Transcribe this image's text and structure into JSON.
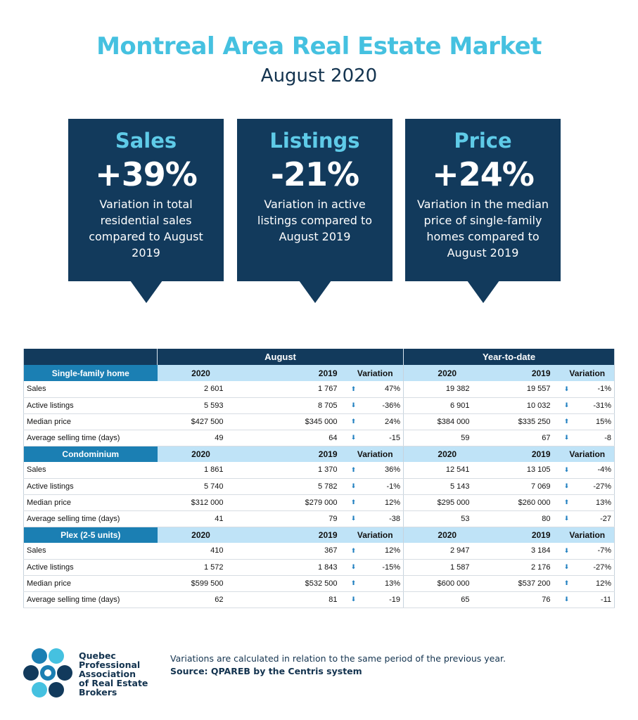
{
  "header": {
    "title": "Montreal Area Real Estate Market",
    "subtitle": "August 2020"
  },
  "cards": [
    {
      "label": "Sales",
      "value": "+39%",
      "desc": "Variation in total residential sales compared to August 2019"
    },
    {
      "label": "Listings",
      "value": "-21%",
      "desc": "Variation in active listings compared to August 2019"
    },
    {
      "label": "Price",
      "value": "+24%",
      "desc": "Variation in the median price of single-family homes compared to August 2019"
    }
  ],
  "table": {
    "group_august": "August",
    "group_ytd": "Year-to-date",
    "col_2020": "2020",
    "col_2019": "2019",
    "col_variation": "Variation",
    "colors": {
      "up_arrow": "#1f7fc0",
      "down_arrow": "#1f7fc0",
      "header": "#123a5c",
      "section": "#1b7fb3"
    },
    "sections": [
      {
        "category": "Single-family home",
        "rows": [
          {
            "label": "Sales",
            "a2020": "2 601",
            "a2019": "1 767",
            "adir": "up",
            "avar": "47%",
            "y2020": "19 382",
            "y2019": "19 557",
            "ydir": "down",
            "yvar": "-1%"
          },
          {
            "label": "Active listings",
            "a2020": "5 593",
            "a2019": "8 705",
            "adir": "down",
            "avar": "-36%",
            "y2020": "6 901",
            "y2019": "10 032",
            "ydir": "down",
            "yvar": "-31%"
          },
          {
            "label": "Median price",
            "a2020": "$427 500",
            "a2019": "$345 000",
            "adir": "up",
            "avar": "24%",
            "y2020": "$384 000",
            "y2019": "$335 250",
            "ydir": "up",
            "yvar": "15%"
          },
          {
            "label": "Average selling time (days)",
            "a2020": "49",
            "a2019": "64",
            "adir": "down",
            "avar": "-15",
            "y2020": "59",
            "y2019": "67",
            "ydir": "down",
            "yvar": "-8"
          }
        ]
      },
      {
        "category": "Condominium",
        "rows": [
          {
            "label": "Sales",
            "a2020": "1 861",
            "a2019": "1 370",
            "adir": "up",
            "avar": "36%",
            "y2020": "12 541",
            "y2019": "13 105",
            "ydir": "down",
            "yvar": "-4%"
          },
          {
            "label": "Active listings",
            "a2020": "5 740",
            "a2019": "5 782",
            "adir": "down",
            "avar": "-1%",
            "y2020": "5 143",
            "y2019": "7 069",
            "ydir": "down",
            "yvar": "-27%"
          },
          {
            "label": "Median price",
            "a2020": "$312 000",
            "a2019": "$279 000",
            "adir": "up",
            "avar": "12%",
            "y2020": "$295 000",
            "y2019": "$260 000",
            "ydir": "up",
            "yvar": "13%"
          },
          {
            "label": "Average selling time (days)",
            "a2020": "41",
            "a2019": "79",
            "adir": "down",
            "avar": "-38",
            "y2020": "53",
            "y2019": "80",
            "ydir": "down",
            "yvar": "-27"
          }
        ]
      },
      {
        "category": "Plex (2-5 units)",
        "rows": [
          {
            "label": "Sales",
            "a2020": "410",
            "a2019": "367",
            "adir": "up",
            "avar": "12%",
            "y2020": "2 947",
            "y2019": "3 184",
            "ydir": "down",
            "yvar": "-7%"
          },
          {
            "label": "Active listings",
            "a2020": "1 572",
            "a2019": "1 843",
            "adir": "down",
            "avar": "-15%",
            "y2020": "1 587",
            "y2019": "2 176",
            "ydir": "down",
            "yvar": "-27%"
          },
          {
            "label": "Median price",
            "a2020": "$599 500",
            "a2019": "$532 500",
            "adir": "up",
            "avar": "13%",
            "y2020": "$600 000",
            "y2019": "$537 200",
            "ydir": "up",
            "yvar": "12%"
          },
          {
            "label": "Average selling time (days)",
            "a2020": "62",
            "a2019": "81",
            "adir": "down",
            "avar": "-19",
            "y2020": "65",
            "y2019": "76",
            "ydir": "down",
            "yvar": "-11"
          }
        ]
      }
    ]
  },
  "footer": {
    "logo_lines": [
      "Quebec",
      "Professional",
      "Association",
      "of Real Estate",
      "Brokers"
    ],
    "note": "Variations are calculated in relation to the same period of the previous year.",
    "source": "Source: QPAREB by the Centris system"
  }
}
